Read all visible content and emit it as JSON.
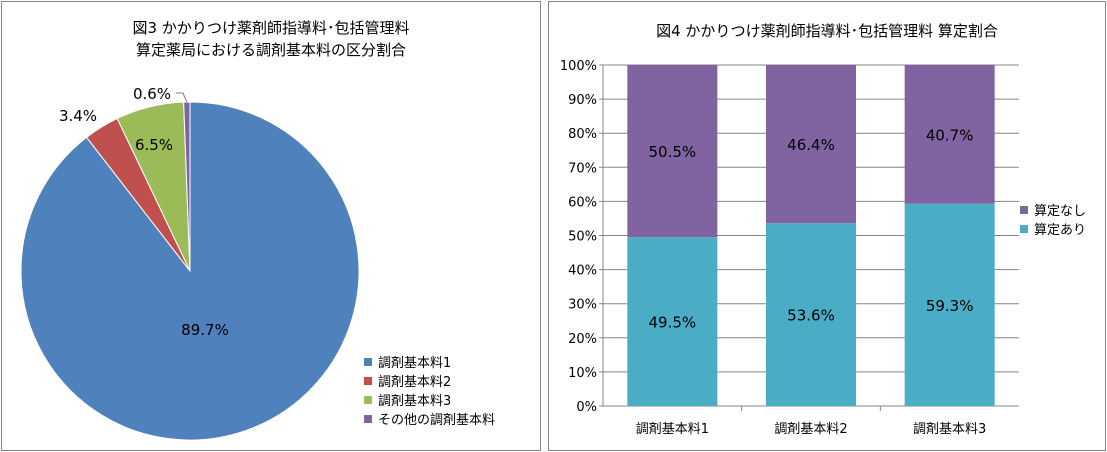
{
  "colors": {
    "kihon1": "#4f81bd",
    "kihon2": "#c0504d",
    "kihon3": "#9bbb59",
    "other": "#8064a2",
    "santei_ari": "#4bacc6",
    "santei_nashi": "#8064a2"
  },
  "chart_data": [
    {
      "type": "pie",
      "title_line1": "図3  かかりつけ薬剤師指導料･包括管理料",
      "title_line2": "算定薬局における調剤基本料の区分割合",
      "categories": [
        "調剤基本料1",
        "調剤基本料2",
        "調剤基本料3",
        "その他の調剤基本料"
      ],
      "values": [
        89.7,
        3.4,
        6.5,
        0.6
      ],
      "labels": [
        "89.7%",
        "3.4%",
        "6.5%",
        "0.6%"
      ],
      "legend_position": "bottom-right"
    },
    {
      "type": "bar",
      "stacked": true,
      "percent": true,
      "title": "図4  かかりつけ薬剤師指導料･包括管理料 算定割合",
      "categories": [
        "調剤基本料1",
        "調剤基本料2",
        "調剤基本料3"
      ],
      "series": [
        {
          "name": "算定あり",
          "values": [
            49.5,
            53.6,
            59.3
          ],
          "labels": [
            "49.5%",
            "53.6%",
            "59.3%"
          ]
        },
        {
          "name": "算定なし",
          "values": [
            50.5,
            46.4,
            40.7
          ],
          "labels": [
            "50.5%",
            "46.4%",
            "40.7%"
          ]
        }
      ],
      "ylim": [
        0,
        100
      ],
      "yticks": [
        "0%",
        "10%",
        "20%",
        "30%",
        "40%",
        "50%",
        "60%",
        "70%",
        "80%",
        "90%",
        "100%"
      ],
      "grid": true,
      "legend_position": "right"
    }
  ]
}
